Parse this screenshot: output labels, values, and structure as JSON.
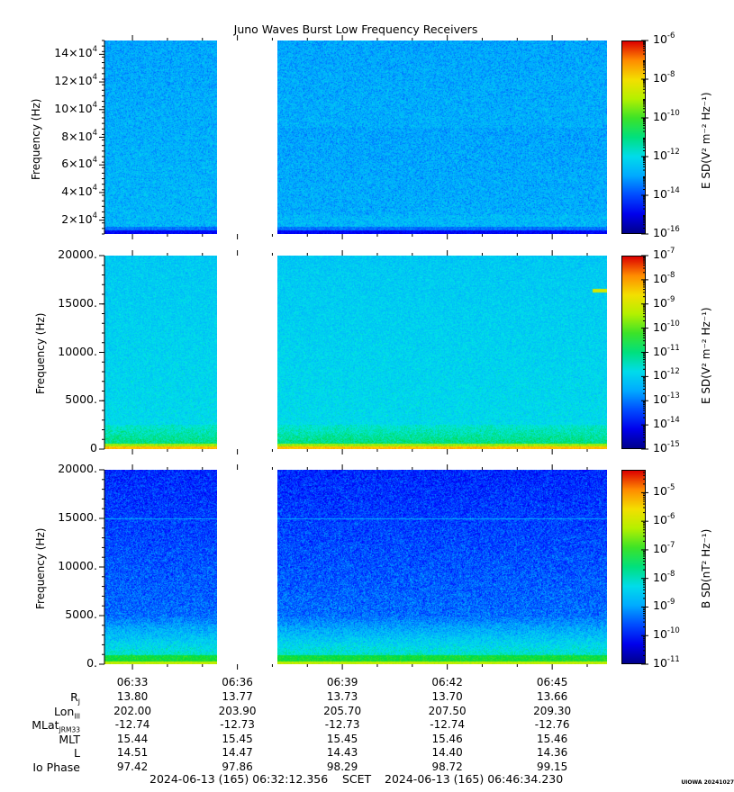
{
  "title": "Juno Waves Burst Low Frequency Receivers",
  "chart_data": [
    {
      "type": "heatmap",
      "ylabel": "Frequency (Hz)",
      "ylim": [
        10000,
        150000
      ],
      "yticks": [
        {
          "m": "2×10",
          "e": "4"
        },
        {
          "m": "4×10",
          "e": "4"
        },
        {
          "m": "6×10",
          "e": "4"
        },
        {
          "m": "8×10",
          "e": "4"
        },
        {
          "m": "10×10",
          "e": "4"
        },
        {
          "m": "12×10",
          "e": "4"
        },
        {
          "m": "14×10",
          "e": "4"
        }
      ],
      "ytick_values": [
        20000,
        40000,
        60000,
        80000,
        100000,
        120000,
        140000
      ],
      "colorbar_label": "E SD(V² m⁻² Hz⁻¹)",
      "colorbar_ticks": [
        {
          "m": "10",
          "e": "-6"
        },
        {
          "m": "10",
          "e": "-8"
        },
        {
          "m": "10",
          "e": "-10"
        },
        {
          "m": "10",
          "e": "-12"
        },
        {
          "m": "10",
          "e": "-14"
        },
        {
          "m": "10",
          "e": "-16"
        }
      ],
      "colorbar_range_log10": [
        -16,
        -6
      ],
      "data_gap": [
        "06:35:25",
        "06:37:20"
      ]
    },
    {
      "type": "heatmap",
      "ylabel": "Frequency (Hz)",
      "ylim": [
        0,
        20000
      ],
      "yticks": [
        "20000.",
        "15000.",
        "10000.",
        "5000.",
        "0"
      ],
      "ytick_values": [
        20000,
        15000,
        10000,
        5000,
        0
      ],
      "colorbar_label": "E SD(V² m⁻² Hz⁻¹)",
      "colorbar_ticks": [
        {
          "m": "10",
          "e": "-7"
        },
        {
          "m": "10",
          "e": "-8"
        },
        {
          "m": "10",
          "e": "-9"
        },
        {
          "m": "10",
          "e": "-10"
        },
        {
          "m": "10",
          "e": "-11"
        },
        {
          "m": "10",
          "e": "-12"
        },
        {
          "m": "10",
          "e": "-13"
        },
        {
          "m": "10",
          "e": "-14"
        },
        {
          "m": "10",
          "e": "-15"
        }
      ],
      "colorbar_range_log10": [
        -15,
        -7
      ],
      "data_gap": [
        "06:35:25",
        "06:37:20"
      ]
    },
    {
      "type": "heatmap",
      "ylabel": "Frequency (Hz)",
      "ylim": [
        0,
        20000
      ],
      "yticks": [
        "20000.",
        "15000.",
        "10000.",
        "5000.",
        "0."
      ],
      "ytick_values": [
        20000,
        15000,
        10000,
        5000,
        0
      ],
      "colorbar_label": "B SD(nT² Hz⁻¹)",
      "colorbar_ticks": [
        {
          "m": "10",
          "e": "-5"
        },
        {
          "m": "10",
          "e": "-6"
        },
        {
          "m": "10",
          "e": "-7"
        },
        {
          "m": "10",
          "e": "-8"
        },
        {
          "m": "10",
          "e": "-9"
        },
        {
          "m": "10",
          "e": "-10"
        },
        {
          "m": "10",
          "e": "-11"
        }
      ],
      "colorbar_range_log10": [
        -11,
        -4.2
      ],
      "data_gap": [
        "06:35:25",
        "06:37:20"
      ]
    }
  ],
  "time_axis": {
    "labels": [
      "06:33",
      "06:36",
      "06:39",
      "06:42",
      "06:45"
    ],
    "xlim": [
      "06:32:12",
      "06:46:34"
    ]
  },
  "ephemeris": [
    {
      "label": "R",
      "sub": "J",
      "values": [
        "13.80",
        "13.77",
        "13.73",
        "13.70",
        "13.66"
      ]
    },
    {
      "label": "Lon",
      "sub": "III",
      "values": [
        "202.00",
        "203.90",
        "205.70",
        "207.50",
        "209.30"
      ]
    },
    {
      "label": "MLat",
      "sub": "JRM33",
      "values": [
        "-12.74",
        "-12.73",
        "-12.73",
        "-12.74",
        "-12.76"
      ]
    },
    {
      "label": "MLT",
      "sub": "",
      "values": [
        "15.44",
        "15.45",
        "15.45",
        "15.46",
        "15.46"
      ]
    },
    {
      "label": "L",
      "sub": "",
      "values": [
        "14.51",
        "14.47",
        "14.43",
        "14.40",
        "14.36"
      ]
    },
    {
      "label": "Io Phase",
      "sub": "",
      "values": [
        "97.42",
        "97.86",
        "98.29",
        "98.72",
        "99.15"
      ]
    }
  ],
  "scet": {
    "start": "2024-06-13 (165) 06:32:12.356",
    "label": "SCET",
    "end": "2024-06-13 (165) 06:46:34.230"
  },
  "stamp": "UIOWA 20241027"
}
